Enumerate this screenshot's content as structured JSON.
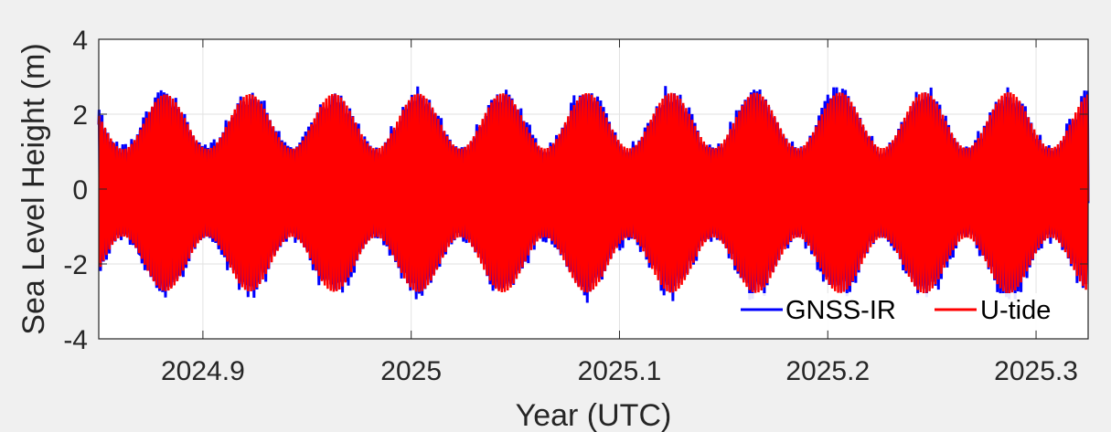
{
  "chart_data": {
    "type": "line",
    "title": "",
    "xlabel": "Year (UTC)",
    "ylabel": "Sea Level Height (m)",
    "xlim": [
      2024.85,
      2025.325
    ],
    "ylim": [
      -4,
      4
    ],
    "xticks": [
      2024.9,
      2025,
      2025.1,
      2025.2,
      2025.3
    ],
    "xtick_labels": [
      "2024.9",
      "2025",
      "2025.1",
      "2025.2",
      "2025.3"
    ],
    "yticks": [
      -4,
      -2,
      0,
      2,
      4
    ],
    "ytick_labels": [
      "-4",
      "-2",
      "0",
      "2",
      "4"
    ],
    "grid": true,
    "legend_position": "bottom-right",
    "tidal_signal": {
      "semidiurnal_cycles_per_year": 706,
      "spring_neap_cycles_per_year": 24.7,
      "spring_amplitude_m": 2.7,
      "neap_amplitude_m": 1.2,
      "mean_level_m": -0.1
    },
    "series": [
      {
        "name": "GNSS-IR",
        "color": "#0000ff"
      },
      {
        "name": "U-tide",
        "color": "#ff0000"
      }
    ]
  }
}
